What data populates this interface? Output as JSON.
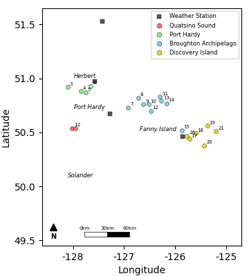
{
  "chart_data": {
    "type": "scatter",
    "xlabel": "Longitude",
    "ylabel": "Latitude",
    "xlim": [
      -128.6,
      -124.7
    ],
    "ylim": [
      49.45,
      51.65
    ],
    "xticks": [
      -128,
      -127,
      -126,
      -125
    ],
    "yticks": [
      49.5,
      50.0,
      50.5,
      51.0,
      51.5
    ],
    "legend": "upper right",
    "series": [
      {
        "name": "Weather Station",
        "color": "#555555",
        "marker": "square",
        "x": [
          -127.42,
          -127.57,
          -127.28,
          -125.85
        ],
        "y": [
          51.53,
          50.97,
          50.67,
          50.46
        ]
      },
      {
        "name": "Quatsino Sound",
        "color": "#ff7070",
        "marker": "circle",
        "x": [
          -128.02,
          -127.95
        ],
        "y": [
          50.54,
          50.54
        ],
        "point_labels": [
          "1",
          "2"
        ]
      },
      {
        "name": "Port Hardy",
        "color": "#90ee90",
        "marker": "circle",
        "x": [
          -128.1,
          -127.85,
          -127.75,
          -127.65
        ],
        "y": [
          50.92,
          50.88,
          50.87,
          50.93
        ],
        "point_labels": [
          "3",
          "4",
          "5",
          "6"
        ]
      },
      {
        "name": "Broughton Archipelago",
        "color": "#87ceeb",
        "marker": "circle",
        "x": [
          -126.92,
          -126.72,
          -126.62,
          -126.52,
          -126.3,
          -126.48,
          -126.27,
          -126.17,
          -125.87
        ],
        "y": [
          50.73,
          50.82,
          50.76,
          50.76,
          50.83,
          50.7,
          50.79,
          50.77,
          50.52
        ],
        "point_labels": [
          "7",
          "8",
          "9",
          "10",
          "11",
          "12",
          "13",
          "14",
          "15"
        ]
      },
      {
        "name": "Discovery Island",
        "color": "#e8e020",
        "marker": "circle",
        "x": [
          -125.77,
          -125.72,
          -125.6,
          -125.37,
          -125.43,
          -125.2
        ],
        "y": [
          50.47,
          50.44,
          50.49,
          50.56,
          50.38,
          50.51
        ],
        "point_labels": [
          "16",
          "17",
          "18",
          "19",
          "20",
          "21"
        ]
      }
    ],
    "annotations": [
      {
        "text": "Herbert",
        "x": -127.55,
        "y": 51.02
      },
      {
        "text": "Port Hardy",
        "x": -127.38,
        "y": 50.73
      },
      {
        "text": "Solander",
        "x": -127.6,
        "y": 50.1
      },
      {
        "text": "Fanny Island",
        "x": -125.97,
        "y": 50.53
      }
    ],
    "scale_bar": {
      "labels": [
        "0km",
        "30km",
        "60km"
      ],
      "x": [
        -127.77,
        -127.33,
        -126.89
      ],
      "y": 49.555
    },
    "north_arrow": {
      "label": "N",
      "x": -128.38,
      "y": 49.5
    }
  }
}
